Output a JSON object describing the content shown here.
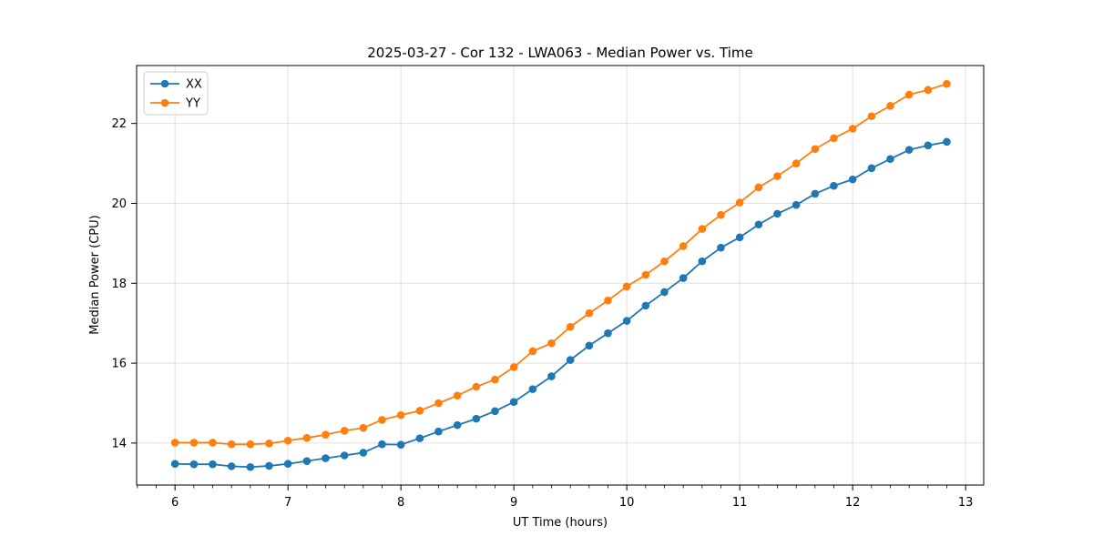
{
  "chart_data": {
    "type": "line",
    "title": "2025-03-27 - Cor 132 - LWA063 - Median Power vs. Time",
    "xlabel": "UT Time (hours)",
    "ylabel": "Median Power (CPU)",
    "xlim": [
      5.66,
      13.16
    ],
    "ylim": [
      12.95,
      23.45
    ],
    "xticks": [
      6,
      7,
      8,
      9,
      10,
      11,
      12,
      13
    ],
    "yticks": [
      14,
      16,
      18,
      20,
      22
    ],
    "x_minor_per_major": 6,
    "grid": true,
    "legend_position": "upper left",
    "x": [
      6.0,
      6.167,
      6.333,
      6.5,
      6.667,
      6.833,
      7.0,
      7.167,
      7.333,
      7.5,
      7.667,
      7.833,
      8.0,
      8.167,
      8.333,
      8.5,
      8.667,
      8.833,
      9.0,
      9.167,
      9.333,
      9.5,
      9.667,
      9.833,
      10.0,
      10.167,
      10.333,
      10.5,
      10.667,
      10.833,
      11.0,
      11.167,
      11.333,
      11.5,
      11.667,
      11.833,
      12.0,
      12.167,
      12.333,
      12.5,
      12.667,
      12.833
    ],
    "series": [
      {
        "name": "XX",
        "color": "#1f77b4",
        "values": [
          13.48,
          13.47,
          13.47,
          13.42,
          13.4,
          13.43,
          13.48,
          13.55,
          13.62,
          13.69,
          13.76,
          13.97,
          13.96,
          14.12,
          14.29,
          14.45,
          14.61,
          14.8,
          15.03,
          15.35,
          15.67,
          16.08,
          16.44,
          16.75,
          17.06,
          17.44,
          17.78,
          18.13,
          18.55,
          18.89,
          19.15,
          19.47,
          19.74,
          19.96,
          20.24,
          20.44,
          20.6,
          20.88,
          21.11,
          21.34,
          21.45,
          21.54
        ]
      },
      {
        "name": "YY",
        "color": "#ff7f0e",
        "values": [
          14.01,
          14.01,
          14.01,
          13.97,
          13.97,
          13.99,
          14.06,
          14.13,
          14.21,
          14.31,
          14.38,
          14.58,
          14.7,
          14.81,
          15.0,
          15.19,
          15.41,
          15.59,
          15.9,
          16.3,
          16.5,
          16.91,
          17.25,
          17.57,
          17.92,
          18.21,
          18.55,
          18.93,
          19.36,
          19.71,
          20.02,
          20.4,
          20.68,
          21.0,
          21.36,
          21.63,
          21.87,
          22.18,
          22.44,
          22.72,
          22.84,
          22.99
        ]
      }
    ]
  },
  "style": {
    "grid_color": "#e0e0e0",
    "spine_color": "#000000",
    "background": "#ffffff",
    "legend_border": "#cccccc"
  }
}
